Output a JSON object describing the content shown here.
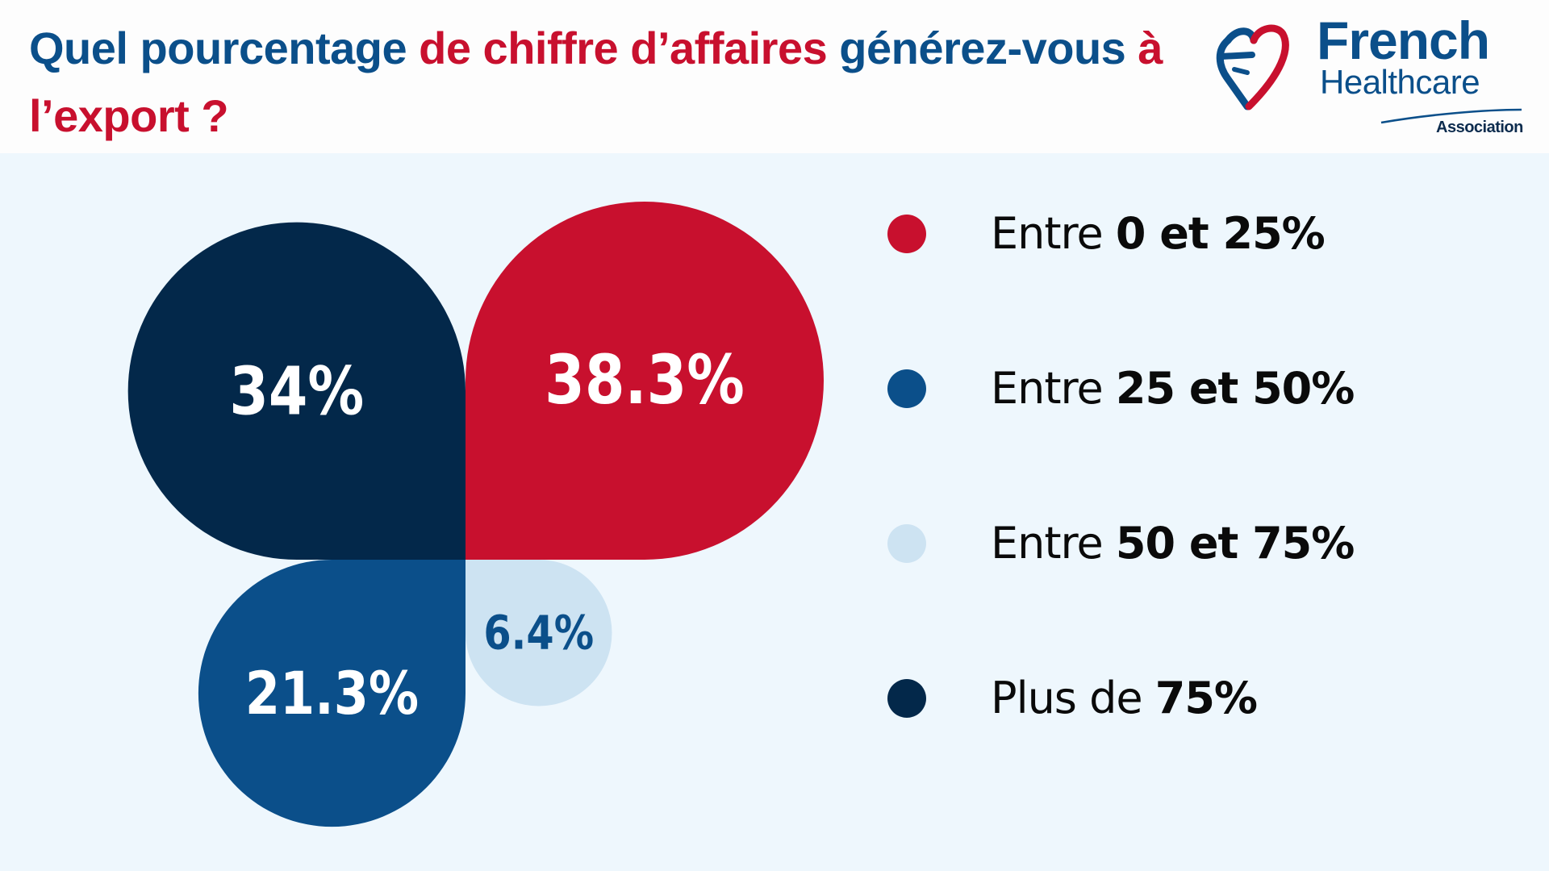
{
  "header": {
    "title_part1": "Quel pourcentage ",
    "title_part2": "de chiffre d’affaires",
    "title_part3": " générez-vous ",
    "title_part4": "à l’export ?"
  },
  "logo": {
    "name": "French",
    "subtitle": "Healthcare",
    "association": "Association",
    "icon": "heart-logo-icon"
  },
  "colors": {
    "red": "#c8102e",
    "blue": "#0b4f8a",
    "light_blue": "#cde3f2",
    "navy": "#03284a",
    "background": "#eef7fd"
  },
  "chart_data": {
    "type": "pie",
    "categories": [
      "Entre 0 et 25%",
      "Entre 25 et 50%",
      "Entre 50 et 75%",
      "Plus de 75%"
    ],
    "values": [
      38.3,
      21.3,
      6.4,
      34
    ],
    "value_labels": [
      "38.3%",
      "21.3%",
      "6.4%",
      "34%"
    ],
    "colors": [
      "#c8102e",
      "#0b4f8a",
      "#cde3f2",
      "#03284a"
    ],
    "label_colors": [
      "#ffffff",
      "#ffffff",
      "#0b4f8a",
      "#ffffff"
    ],
    "legend": [
      {
        "prefix": "Entre ",
        "bold": "0 et 25%",
        "color": "#c8102e"
      },
      {
        "prefix": "Entre ",
        "bold": "25 et 50%",
        "color": "#0b4f8a"
      },
      {
        "prefix": "Entre ",
        "bold": "50 et 75%",
        "color": "#cde3f2"
      },
      {
        "prefix": "Plus de ",
        "bold": "75%",
        "color": "#03284a"
      }
    ],
    "legend_position": "right"
  }
}
